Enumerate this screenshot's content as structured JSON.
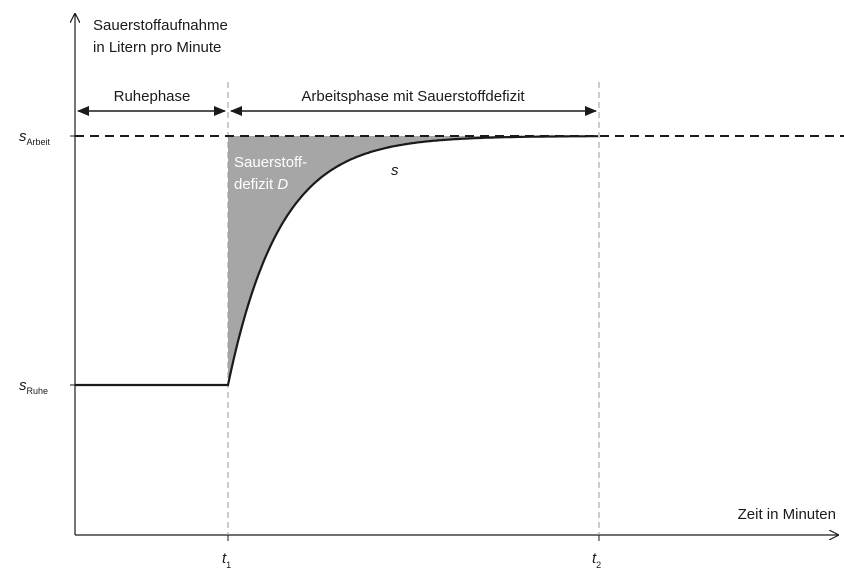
{
  "chart_data": {
    "type": "line",
    "y_axis_label_line1": "Sauerstoffaufnahme",
    "y_axis_label_line2": "in Litern pro Minute",
    "x_axis_label": "Zeit in Minuten",
    "y_ticks": [
      {
        "symbol": "s",
        "subscript": "Arbeit"
      },
      {
        "symbol": "s",
        "subscript": "Ruhe"
      }
    ],
    "x_ticks": [
      {
        "symbol": "t",
        "subscript": "1"
      },
      {
        "symbol": "t",
        "subscript": "2"
      }
    ],
    "phases": {
      "rest": "Ruhephase",
      "work": "Arbeitsphase mit Sauerstoffdefizit"
    },
    "curve_label": "s",
    "area_label_line1": "Sauerstoff-",
    "area_label_line2_prefix": "defizit ",
    "area_label_line2_symbol": "D",
    "colors": {
      "curve": "#1a1a1a",
      "deficit_fill": "#a6a6a6",
      "guide": "#999999",
      "axis": "#1a1a1a"
    }
  }
}
